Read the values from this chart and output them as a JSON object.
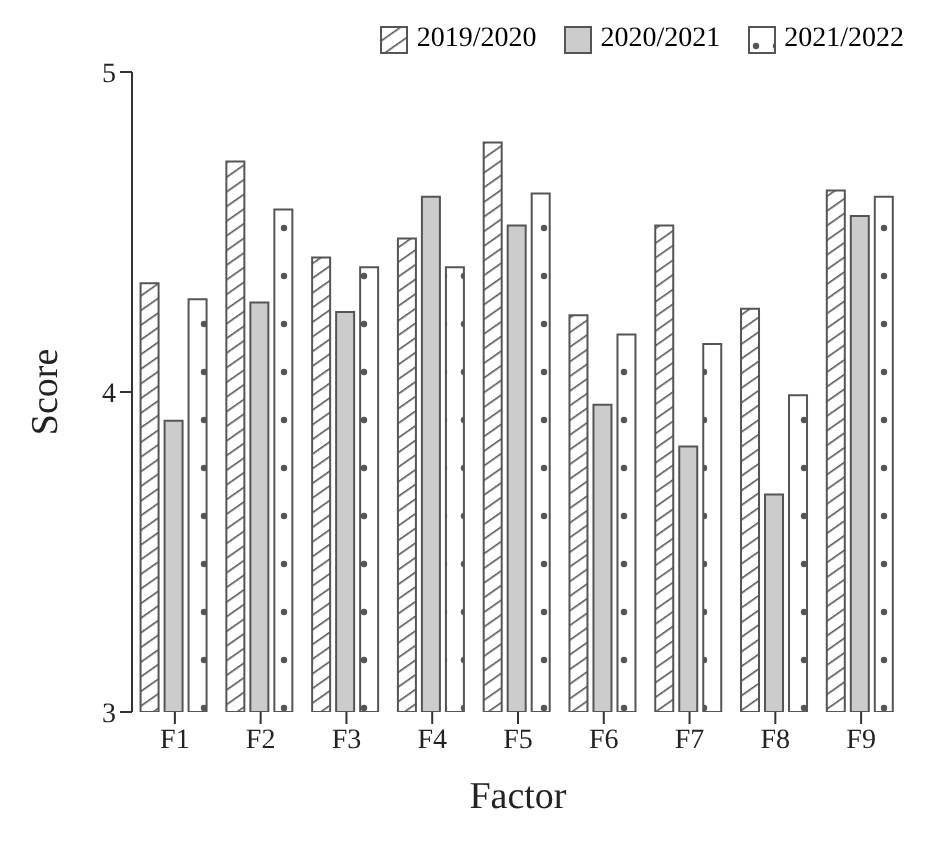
{
  "chart_data": {
    "type": "bar",
    "xlabel": "Factor",
    "ylabel": "Score",
    "categories": [
      "F1",
      "F2",
      "F3",
      "F4",
      "F5",
      "F6",
      "F7",
      "F8",
      "F9"
    ],
    "series": [
      {
        "name": "2019/2020",
        "color": "#555555",
        "values": [
          4.34,
          4.72,
          4.42,
          4.48,
          4.78,
          4.24,
          4.52,
          4.26,
          4.63
        ]
      },
      {
        "name": "2020/2021",
        "color": "#cccccc",
        "values": [
          3.91,
          4.28,
          4.25,
          4.61,
          4.52,
          3.96,
          3.83,
          3.68,
          4.55
        ]
      },
      {
        "name": "2021/2022",
        "color": "#555555",
        "values": [
          4.29,
          4.57,
          4.39,
          4.39,
          4.62,
          4.18,
          4.15,
          3.99,
          4.61
        ]
      }
    ],
    "ylim": [
      3,
      5
    ],
    "yticks": [
      3,
      4,
      5
    ],
    "grid": false,
    "legend": "top right"
  }
}
